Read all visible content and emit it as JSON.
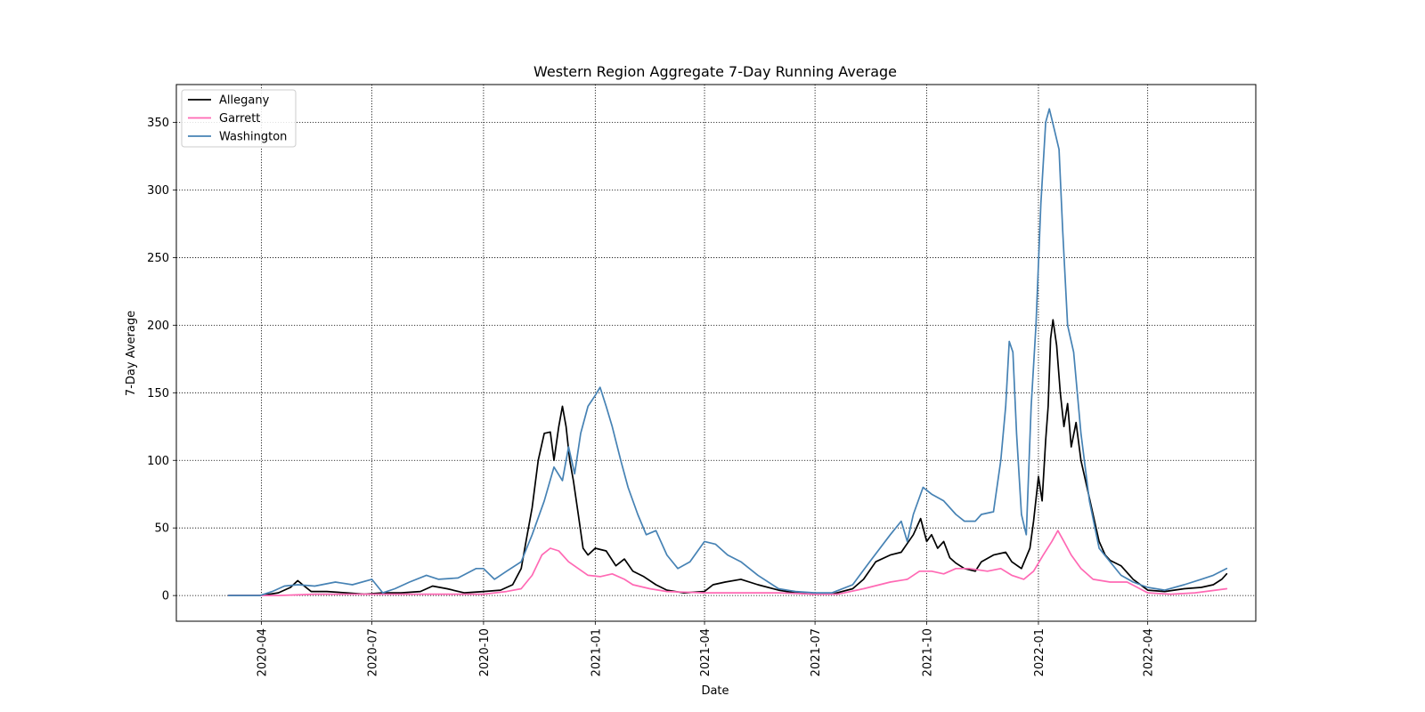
{
  "chart_data": {
    "type": "line",
    "title": "Western Region Aggregate 7-Day Running Average",
    "xlabel": "Date",
    "ylabel": "7-Day Average",
    "xlim": [
      "2020-01-22",
      "2022-06-29"
    ],
    "ylim": [
      -19,
      378
    ],
    "grid": true,
    "legend_position": "top-left",
    "x_ticks": [
      "2020-04",
      "2020-07",
      "2020-10",
      "2021-01",
      "2021-04",
      "2021-07",
      "2021-10",
      "2022-01",
      "2022-04"
    ],
    "y_ticks": [
      0,
      50,
      100,
      150,
      200,
      250,
      300,
      350
    ],
    "series": [
      {
        "name": "Allegany",
        "color": "#000000",
        "points": [
          [
            "2020-03-05",
            0
          ],
          [
            "2020-04-01",
            0
          ],
          [
            "2020-04-15",
            2
          ],
          [
            "2020-04-25",
            6
          ],
          [
            "2020-05-01",
            11
          ],
          [
            "2020-05-05",
            8
          ],
          [
            "2020-05-12",
            3
          ],
          [
            "2020-05-25",
            3
          ],
          [
            "2020-06-10",
            2
          ],
          [
            "2020-06-25",
            1
          ],
          [
            "2020-07-10",
            2
          ],
          [
            "2020-07-25",
            2
          ],
          [
            "2020-08-10",
            3
          ],
          [
            "2020-08-20",
            7
          ],
          [
            "2020-09-01",
            5
          ],
          [
            "2020-09-15",
            2
          ],
          [
            "2020-10-01",
            3
          ],
          [
            "2020-10-15",
            4
          ],
          [
            "2020-10-25",
            8
          ],
          [
            "2020-11-01",
            20
          ],
          [
            "2020-11-05",
            40
          ],
          [
            "2020-11-10",
            65
          ],
          [
            "2020-11-15",
            100
          ],
          [
            "2020-11-20",
            120
          ],
          [
            "2020-11-25",
            121
          ],
          [
            "2020-11-28",
            100
          ],
          [
            "2020-12-02",
            125
          ],
          [
            "2020-12-05",
            140
          ],
          [
            "2020-12-08",
            125
          ],
          [
            "2020-12-11",
            100
          ],
          [
            "2020-12-14",
            85
          ],
          [
            "2020-12-18",
            60
          ],
          [
            "2020-12-22",
            35
          ],
          [
            "2020-12-26",
            30
          ],
          [
            "2021-01-01",
            35
          ],
          [
            "2021-01-10",
            33
          ],
          [
            "2021-01-18",
            22
          ],
          [
            "2021-01-25",
            27
          ],
          [
            "2021-02-01",
            18
          ],
          [
            "2021-02-10",
            14
          ],
          [
            "2021-02-20",
            8
          ],
          [
            "2021-03-01",
            4
          ],
          [
            "2021-03-15",
            2
          ],
          [
            "2021-04-01",
            3
          ],
          [
            "2021-04-08",
            8
          ],
          [
            "2021-04-18",
            10
          ],
          [
            "2021-05-01",
            12
          ],
          [
            "2021-05-15",
            8
          ],
          [
            "2021-06-01",
            4
          ],
          [
            "2021-06-15",
            2
          ],
          [
            "2021-07-01",
            1
          ],
          [
            "2021-07-15",
            1
          ],
          [
            "2021-08-01",
            5
          ],
          [
            "2021-08-10",
            12
          ],
          [
            "2021-08-20",
            25
          ],
          [
            "2021-09-01",
            30
          ],
          [
            "2021-09-10",
            32
          ],
          [
            "2021-09-20",
            45
          ],
          [
            "2021-09-26",
            57
          ],
          [
            "2021-10-01",
            40
          ],
          [
            "2021-10-05",
            45
          ],
          [
            "2021-10-10",
            35
          ],
          [
            "2021-10-15",
            40
          ],
          [
            "2021-10-20",
            28
          ],
          [
            "2021-10-25",
            24
          ],
          [
            "2021-11-01",
            20
          ],
          [
            "2021-11-10",
            18
          ],
          [
            "2021-11-15",
            25
          ],
          [
            "2021-11-25",
            30
          ],
          [
            "2021-12-05",
            32
          ],
          [
            "2021-12-10",
            25
          ],
          [
            "2021-12-18",
            20
          ],
          [
            "2021-12-25",
            35
          ],
          [
            "2021-12-28",
            55
          ],
          [
            "2022-01-01",
            88
          ],
          [
            "2022-01-04",
            70
          ],
          [
            "2022-01-07",
            115
          ],
          [
            "2022-01-09",
            140
          ],
          [
            "2022-01-11",
            190
          ],
          [
            "2022-01-13",
            204
          ],
          [
            "2022-01-16",
            185
          ],
          [
            "2022-01-19",
            150
          ],
          [
            "2022-01-22",
            125
          ],
          [
            "2022-01-25",
            142
          ],
          [
            "2022-01-28",
            110
          ],
          [
            "2022-02-01",
            128
          ],
          [
            "2022-02-05",
            100
          ],
          [
            "2022-02-10",
            80
          ],
          [
            "2022-02-15",
            60
          ],
          [
            "2022-02-20",
            40
          ],
          [
            "2022-02-25",
            30
          ],
          [
            "2022-03-01",
            26
          ],
          [
            "2022-03-10",
            22
          ],
          [
            "2022-03-20",
            12
          ],
          [
            "2022-04-01",
            4
          ],
          [
            "2022-04-15",
            3
          ],
          [
            "2022-05-01",
            5
          ],
          [
            "2022-05-15",
            6
          ],
          [
            "2022-05-25",
            8
          ],
          [
            "2022-06-01",
            12
          ],
          [
            "2022-06-05",
            16
          ]
        ]
      },
      {
        "name": "Garrett",
        "color": "#ff69b4",
        "points": [
          [
            "2020-03-05",
            0
          ],
          [
            "2020-04-15",
            0
          ],
          [
            "2020-05-15",
            1
          ],
          [
            "2020-07-01",
            1
          ],
          [
            "2020-08-15",
            1
          ],
          [
            "2020-10-01",
            1
          ],
          [
            "2020-10-20",
            3
          ],
          [
            "2020-11-01",
            5
          ],
          [
            "2020-11-10",
            15
          ],
          [
            "2020-11-18",
            30
          ],
          [
            "2020-11-25",
            35
          ],
          [
            "2020-12-02",
            33
          ],
          [
            "2020-12-10",
            25
          ],
          [
            "2020-12-18",
            20
          ],
          [
            "2020-12-26",
            15
          ],
          [
            "2021-01-05",
            14
          ],
          [
            "2021-01-15",
            16
          ],
          [
            "2021-01-25",
            12
          ],
          [
            "2021-02-01",
            8
          ],
          [
            "2021-02-15",
            5
          ],
          [
            "2021-03-01",
            3
          ],
          [
            "2021-04-01",
            2
          ],
          [
            "2021-05-01",
            2
          ],
          [
            "2021-06-01",
            2
          ],
          [
            "2021-07-01",
            1
          ],
          [
            "2021-07-20",
            1
          ],
          [
            "2021-08-10",
            5
          ],
          [
            "2021-09-01",
            10
          ],
          [
            "2021-09-15",
            12
          ],
          [
            "2021-09-25",
            18
          ],
          [
            "2021-10-05",
            18
          ],
          [
            "2021-10-15",
            16
          ],
          [
            "2021-10-25",
            20
          ],
          [
            "2021-11-05",
            20
          ],
          [
            "2021-11-20",
            18
          ],
          [
            "2021-12-01",
            20
          ],
          [
            "2021-12-10",
            15
          ],
          [
            "2021-12-20",
            12
          ],
          [
            "2021-12-28",
            18
          ],
          [
            "2022-01-05",
            30
          ],
          [
            "2022-01-12",
            40
          ],
          [
            "2022-01-17",
            48
          ],
          [
            "2022-01-22",
            40
          ],
          [
            "2022-01-28",
            30
          ],
          [
            "2022-02-05",
            20
          ],
          [
            "2022-02-15",
            12
          ],
          [
            "2022-03-01",
            10
          ],
          [
            "2022-03-15",
            10
          ],
          [
            "2022-04-01",
            2
          ],
          [
            "2022-04-20",
            1
          ],
          [
            "2022-05-10",
            2
          ],
          [
            "2022-06-05",
            5
          ]
        ]
      },
      {
        "name": "Washington",
        "color": "#4682b4",
        "points": [
          [
            "2020-03-05",
            0
          ],
          [
            "2020-03-31",
            0
          ],
          [
            "2020-04-10",
            3
          ],
          [
            "2020-04-20",
            7
          ],
          [
            "2020-05-01",
            8
          ],
          [
            "2020-05-15",
            7
          ],
          [
            "2020-06-01",
            10
          ],
          [
            "2020-06-15",
            8
          ],
          [
            "2020-07-01",
            12
          ],
          [
            "2020-07-10",
            2
          ],
          [
            "2020-07-20",
            5
          ],
          [
            "2020-08-01",
            10
          ],
          [
            "2020-08-15",
            15
          ],
          [
            "2020-08-25",
            12
          ],
          [
            "2020-09-10",
            13
          ],
          [
            "2020-09-25",
            20
          ],
          [
            "2020-10-01",
            20
          ],
          [
            "2020-10-10",
            12
          ],
          [
            "2020-10-20",
            18
          ],
          [
            "2020-11-01",
            25
          ],
          [
            "2020-11-10",
            45
          ],
          [
            "2020-11-20",
            70
          ],
          [
            "2020-11-28",
            95
          ],
          [
            "2020-12-05",
            85
          ],
          [
            "2020-12-10",
            110
          ],
          [
            "2020-12-15",
            90
          ],
          [
            "2020-12-20",
            120
          ],
          [
            "2020-12-26",
            140
          ],
          [
            "2021-01-01",
            148
          ],
          [
            "2021-01-05",
            154
          ],
          [
            "2021-01-10",
            140
          ],
          [
            "2021-01-15",
            125
          ],
          [
            "2021-01-22",
            100
          ],
          [
            "2021-01-28",
            80
          ],
          [
            "2021-02-05",
            60
          ],
          [
            "2021-02-12",
            45
          ],
          [
            "2021-02-20",
            48
          ],
          [
            "2021-03-01",
            30
          ],
          [
            "2021-03-10",
            20
          ],
          [
            "2021-03-20",
            25
          ],
          [
            "2021-04-01",
            40
          ],
          [
            "2021-04-10",
            38
          ],
          [
            "2021-04-20",
            30
          ],
          [
            "2021-05-01",
            25
          ],
          [
            "2021-05-15",
            15
          ],
          [
            "2021-06-01",
            5
          ],
          [
            "2021-06-15",
            3
          ],
          [
            "2021-07-01",
            2
          ],
          [
            "2021-07-15",
            2
          ],
          [
            "2021-08-01",
            8
          ],
          [
            "2021-08-15",
            25
          ],
          [
            "2021-09-01",
            45
          ],
          [
            "2021-09-10",
            55
          ],
          [
            "2021-09-15",
            40
          ],
          [
            "2021-09-20",
            60
          ],
          [
            "2021-09-28",
            80
          ],
          [
            "2021-10-05",
            75
          ],
          [
            "2021-10-15",
            70
          ],
          [
            "2021-10-25",
            60
          ],
          [
            "2021-11-01",
            55
          ],
          [
            "2021-11-10",
            55
          ],
          [
            "2021-11-15",
            60
          ],
          [
            "2021-11-25",
            62
          ],
          [
            "2021-12-01",
            100
          ],
          [
            "2021-12-05",
            140
          ],
          [
            "2021-12-08",
            188
          ],
          [
            "2021-12-11",
            180
          ],
          [
            "2021-12-14",
            120
          ],
          [
            "2021-12-18",
            60
          ],
          [
            "2021-12-22",
            45
          ],
          [
            "2021-12-26",
            140
          ],
          [
            "2021-12-30",
            200
          ],
          [
            "2022-01-03",
            290
          ],
          [
            "2022-01-07",
            350
          ],
          [
            "2022-01-10",
            360
          ],
          [
            "2022-01-14",
            345
          ],
          [
            "2022-01-18",
            330
          ],
          [
            "2022-01-21",
            270
          ],
          [
            "2022-01-25",
            200
          ],
          [
            "2022-01-30",
            180
          ],
          [
            "2022-02-05",
            120
          ],
          [
            "2022-02-12",
            70
          ],
          [
            "2022-02-20",
            35
          ],
          [
            "2022-03-01",
            25
          ],
          [
            "2022-03-10",
            15
          ],
          [
            "2022-03-20",
            10
          ],
          [
            "2022-04-01",
            6
          ],
          [
            "2022-04-15",
            4
          ],
          [
            "2022-05-01",
            8
          ],
          [
            "2022-05-15",
            12
          ],
          [
            "2022-05-25",
            15
          ],
          [
            "2022-06-05",
            20
          ]
        ]
      }
    ]
  }
}
